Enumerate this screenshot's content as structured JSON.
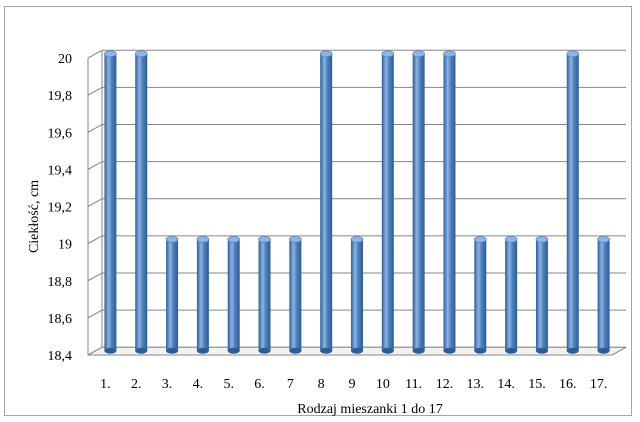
{
  "chart_data": {
    "type": "bar",
    "style": "3d-cylinder",
    "xlabel": "Rodzaj mieszanki 1 do 17",
    "ylabel": "Ciekłość, cm",
    "categories": [
      "1.",
      "2.",
      "3.",
      "4.",
      "5.",
      "6.",
      "7",
      "8",
      "9",
      "10",
      "11.",
      "12.",
      "13.",
      "14.",
      "15.",
      "16.",
      "17."
    ],
    "values": [
      20,
      20,
      19,
      19,
      19,
      19,
      19,
      20,
      19,
      20,
      20,
      20,
      19,
      19,
      19,
      20,
      19
    ],
    "ylim": [
      18.4,
      20
    ],
    "yticks": [
      "18,4",
      "18,6",
      "18,8",
      "19",
      "19,2",
      "19,4",
      "19,6",
      "19,8",
      "20"
    ],
    "grid": true,
    "legend": false,
    "bar_color": "#4F81BD",
    "bar_dark": "#2E5D95",
    "bar_light": "#8DB4E2"
  }
}
